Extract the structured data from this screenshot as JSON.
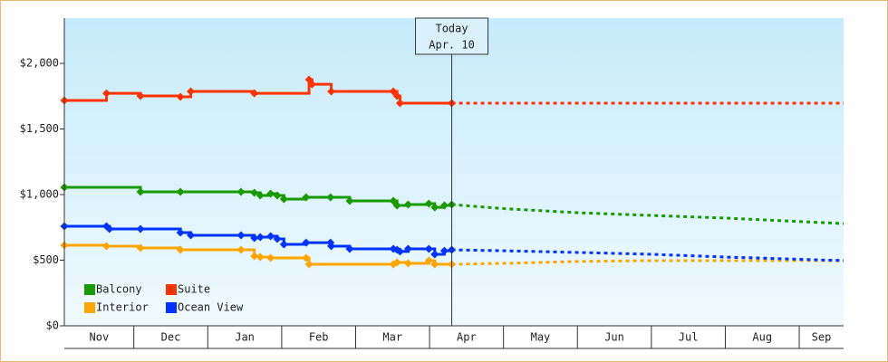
{
  "chart_data": {
    "type": "line",
    "xlim": [
      0.06,
      10.6
    ],
    "ylim": [
      0,
      2345
    ],
    "xticks": [
      {
        "value": 0,
        "label": "Nov"
      },
      {
        "value": 1,
        "label": "Dec"
      },
      {
        "value": 2,
        "label": "Jan"
      },
      {
        "value": 3,
        "label": "Feb"
      },
      {
        "value": 4,
        "label": "Mar"
      },
      {
        "value": 5,
        "label": "Apr"
      },
      {
        "value": 6,
        "label": "May"
      },
      {
        "value": 7,
        "label": "Jun"
      },
      {
        "value": 8,
        "label": "Jul"
      },
      {
        "value": 9,
        "label": "Aug"
      },
      {
        "value": 10,
        "label": "Sep"
      }
    ],
    "yticks": [
      {
        "value": 0,
        "label": "$0"
      },
      {
        "value": 500,
        "label": "$500"
      },
      {
        "value": 1000,
        "label": "$1,000"
      },
      {
        "value": 1500,
        "label": "$1,500"
      },
      {
        "value": 2000,
        "label": "$2,000"
      }
    ],
    "annotation": {
      "x": 5.3,
      "title": "Today",
      "label": "Apr. 10"
    },
    "legend": "bottom-left",
    "series": [
      {
        "name": "Balcony",
        "color": "#1a9a00",
        "x": [
          0.06,
          1.09,
          1.63,
          2.45,
          2.63,
          2.71,
          2.85,
          2.94,
          3.03,
          3.33,
          3.66,
          3.92,
          4.51,
          4.56,
          4.71,
          4.99,
          5.07,
          5.2,
          5.3
        ],
        "values": [
          1055,
          1021,
          1021,
          1021,
          1014,
          993,
          1007,
          993,
          966,
          979,
          979,
          952,
          952,
          917,
          924,
          931,
          903,
          917,
          924
        ],
        "forecast_x": [
          5.3,
          6,
          7,
          8,
          9,
          10.6
        ],
        "forecast_values": [
          924,
          893,
          862,
          841,
          821,
          779
        ]
      },
      {
        "name": "Suite",
        "color": "#ff3300",
        "x": [
          0.06,
          0.63,
          1.09,
          1.63,
          1.77,
          2.63,
          3.37,
          3.41,
          3.67,
          4.51,
          4.56,
          4.6,
          5.3
        ],
        "values": [
          1717,
          1772,
          1752,
          1745,
          1786,
          1772,
          1876,
          1841,
          1786,
          1786,
          1752,
          1697,
          1697
        ],
        "forecast_x": [
          5.3,
          10.6
        ],
        "forecast_values": [
          1697,
          1697
        ]
      },
      {
        "name": "Interior",
        "color": "#ffa500",
        "x": [
          0.06,
          0.63,
          1.09,
          1.63,
          2.45,
          2.63,
          2.71,
          2.85,
          3.33,
          3.37,
          4.51,
          4.56,
          4.71,
          4.99,
          5.07,
          5.3
        ],
        "values": [
          614,
          607,
          593,
          579,
          579,
          531,
          524,
          517,
          517,
          469,
          469,
          483,
          476,
          497,
          469,
          469
        ],
        "forecast_x": [
          5.3,
          6,
          7,
          8,
          10.6
        ],
        "forecast_values": [
          469,
          476,
          490,
          497,
          497
        ]
      },
      {
        "name": "Ocean View",
        "color": "#0033ff",
        "x": [
          0.06,
          0.63,
          0.67,
          1.09,
          1.63,
          1.77,
          2.45,
          2.63,
          2.71,
          2.85,
          2.94,
          3.03,
          3.33,
          3.66,
          3.67,
          3.92,
          4.51,
          4.56,
          4.6,
          4.71,
          4.99,
          5.07,
          5.2,
          5.3
        ],
        "values": [
          759,
          759,
          738,
          738,
          710,
          690,
          690,
          669,
          676,
          683,
          662,
          621,
          634,
          634,
          607,
          586,
          586,
          579,
          566,
          586,
          586,
          545,
          572,
          579
        ],
        "forecast_x": [
          5.3,
          6,
          7,
          8,
          9,
          10.6
        ],
        "forecast_values": [
          579,
          572,
          559,
          545,
          524,
          497
        ]
      }
    ]
  }
}
